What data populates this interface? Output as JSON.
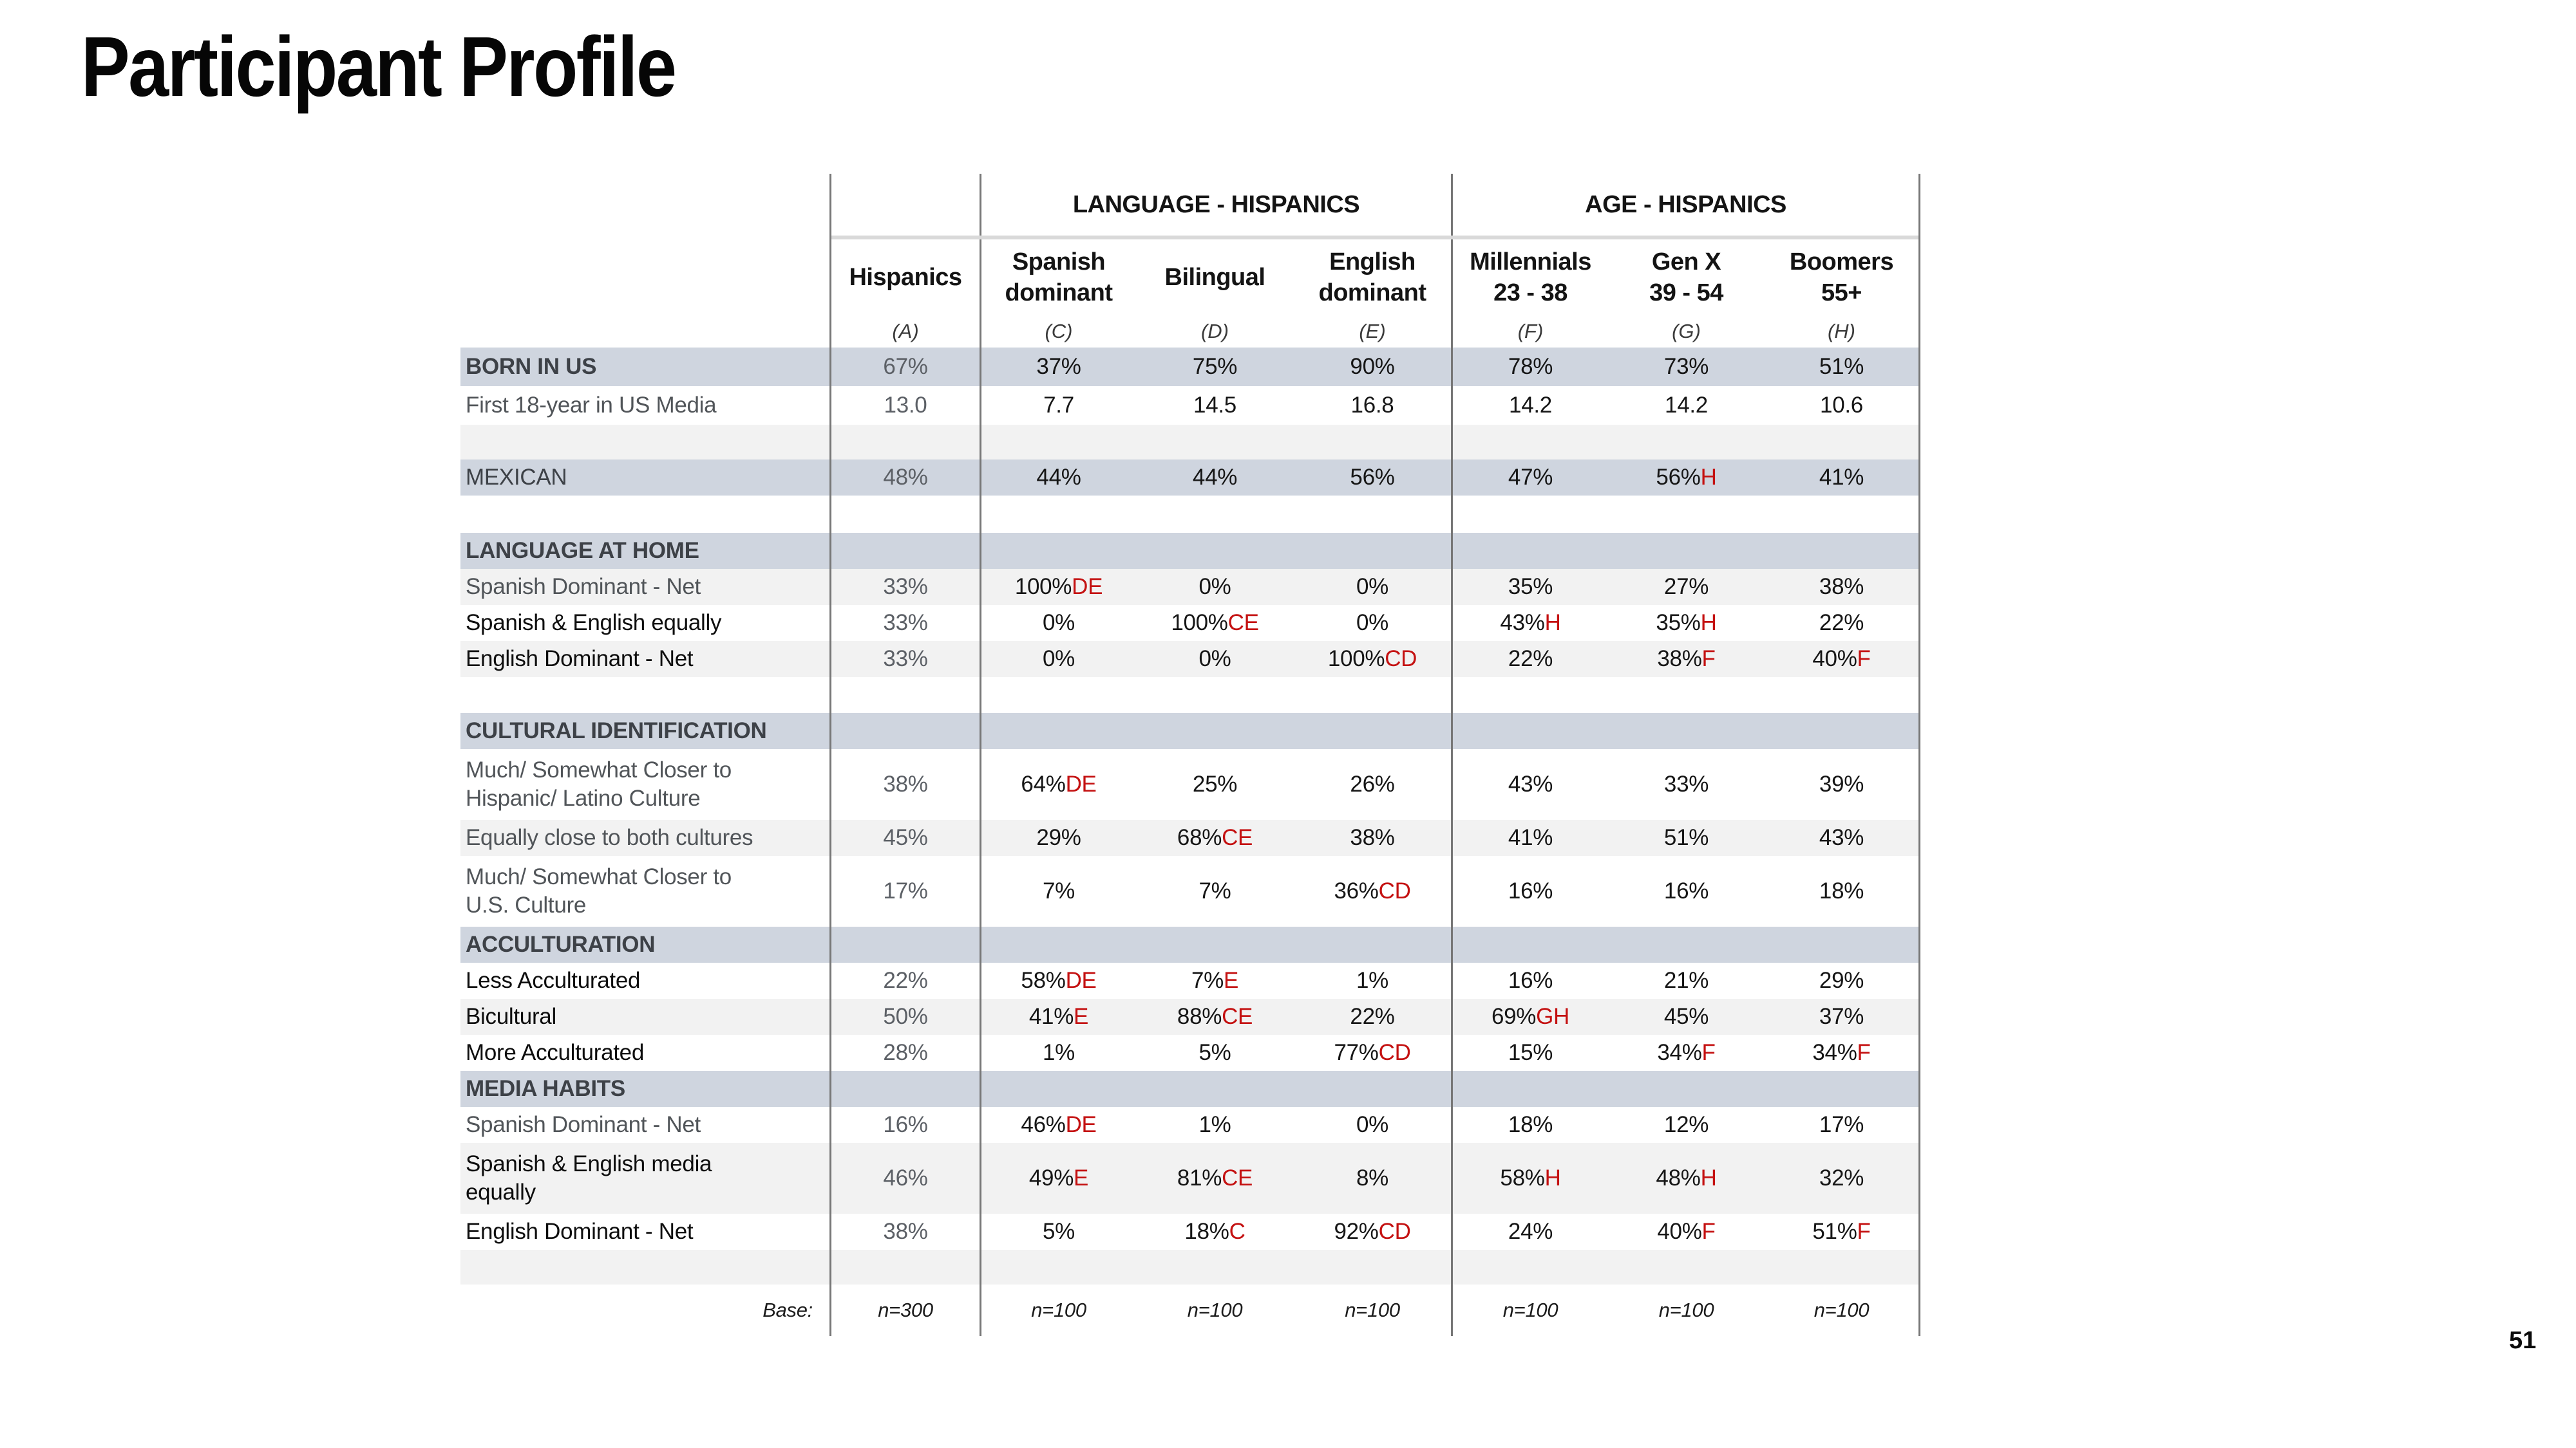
{
  "title": "Participant Profile",
  "page_number": "51",
  "colors": {
    "band": "#cfd5df",
    "stripe": "#f2f2f2",
    "significance_red": "#c41111",
    "border_gray": "#777777",
    "divider_gray": "#d9d9d9",
    "gray_text": "#515559",
    "section_text": "#3d4147"
  },
  "table": {
    "groups": [
      {
        "label": "LANGUAGE - HISPANICS"
      },
      {
        "label": "AGE - HISPANICS"
      }
    ],
    "columns": [
      {
        "label": "Hispanics",
        "letter": "(A)"
      },
      {
        "label": "Spanish\ndominant",
        "letter": "(C)"
      },
      {
        "label": "Bilingual",
        "letter": "(D)"
      },
      {
        "label": "English\ndominant",
        "letter": "(E)"
      },
      {
        "label": "Millennials\n23 - 38",
        "letter": "(F)"
      },
      {
        "label": "Gen X\n39 - 54",
        "letter": "(G)"
      },
      {
        "label": "Boomers\n55+",
        "letter": "(H)"
      }
    ],
    "rows": [
      {
        "type": "data",
        "bg": "band",
        "label": "BORN IN US",
        "label_style": "section",
        "h": 60,
        "cells": [
          "67%",
          "37%",
          "75%",
          "90%",
          "78%",
          "73%",
          "51%"
        ]
      },
      {
        "type": "data",
        "bg": "white",
        "label": "First 18-year in US Media",
        "label_style": "gray",
        "h": 60,
        "cells": [
          "13.0",
          "7.7",
          "14.5",
          "16.8",
          "14.2",
          "14.2",
          "10.6"
        ]
      },
      {
        "type": "spacer",
        "bg": "stripe",
        "h": 54
      },
      {
        "type": "data",
        "bg": "band",
        "label": "MEXICAN",
        "label_style": "upper",
        "h": 56,
        "cells": [
          "48%",
          "44%",
          "44%",
          "56%",
          "47%",
          "56%|H",
          "41%"
        ]
      },
      {
        "type": "spacer",
        "bg": "white",
        "h": 58
      },
      {
        "type": "section",
        "bg": "band",
        "label": "LANGUAGE AT HOME",
        "h": 56
      },
      {
        "type": "data",
        "bg": "stripe",
        "label": "Spanish Dominant - Net",
        "label_style": "gray",
        "h": 56,
        "cells": [
          "33%",
          "100%|DE",
          "0%",
          "0%",
          "35%",
          "27%",
          "38%"
        ]
      },
      {
        "type": "data",
        "bg": "white",
        "label": "Spanish & English equally",
        "label_style": "black",
        "h": 56,
        "cells": [
          "33%",
          "0%",
          "100%|CE",
          "0%",
          "43%|H",
          "35%|H",
          "22%"
        ]
      },
      {
        "type": "data",
        "bg": "stripe",
        "label": "English Dominant - Net",
        "label_style": "black",
        "h": 56,
        "cells": [
          "33%",
          "0%",
          "0%",
          "100%|CD",
          "22%",
          "38%|F",
          "40%|F"
        ]
      },
      {
        "type": "spacer",
        "bg": "white",
        "h": 56
      },
      {
        "type": "section",
        "bg": "band",
        "label": "CULTURAL IDENTIFICATION",
        "h": 56
      },
      {
        "type": "data",
        "bg": "white",
        "label": "Much/ Somewhat Closer to\nHispanic/ Latino Culture",
        "label_style": "gray",
        "h": 110,
        "cells": [
          "38%",
          "64%|DE",
          "25%",
          "26%",
          "43%",
          "33%",
          "39%"
        ]
      },
      {
        "type": "data",
        "bg": "stripe",
        "label": "Equally close to both cultures",
        "label_style": "gray",
        "h": 56,
        "cells": [
          "45%",
          "29%",
          "68%|CE",
          "38%",
          "41%",
          "51%",
          "43%"
        ]
      },
      {
        "type": "data",
        "bg": "white",
        "label": "Much/ Somewhat Closer to\nU.S. Culture",
        "label_style": "gray",
        "h": 110,
        "cells": [
          "17%",
          "7%",
          "7%",
          "36%|CD",
          "16%",
          "16%",
          "18%"
        ]
      },
      {
        "type": "section",
        "bg": "band",
        "label": "ACCULTURATION",
        "h": 56
      },
      {
        "type": "data",
        "bg": "white",
        "label": "Less Acculturated",
        "label_style": "black",
        "h": 56,
        "cells": [
          "22%",
          "58%|DE",
          "7%|E",
          "1%",
          "16%",
          "21%",
          "29%"
        ]
      },
      {
        "type": "data",
        "bg": "stripe",
        "label": "Bicultural",
        "label_style": "black",
        "h": 56,
        "cells": [
          "50%",
          "41%|E",
          "88%|CE",
          "22%",
          "69%|GH",
          "45%",
          "37%"
        ]
      },
      {
        "type": "data",
        "bg": "white",
        "label": "More Acculturated",
        "label_style": "black",
        "h": 56,
        "cells": [
          "28%",
          "1%",
          "5%",
          "77%|CD",
          "15%",
          "34%|F",
          "34%|F"
        ]
      },
      {
        "type": "section",
        "bg": "band",
        "label": "MEDIA HABITS",
        "h": 56
      },
      {
        "type": "data",
        "bg": "white",
        "label": "Spanish Dominant - Net",
        "label_style": "gray",
        "h": 56,
        "cells": [
          "16%",
          "46%|DE",
          "1%",
          "0%",
          "18%",
          "12%",
          "17%"
        ]
      },
      {
        "type": "data",
        "bg": "stripe",
        "label": "Spanish & English media\nequally",
        "label_style": "black",
        "h": 110,
        "cells": [
          "46%",
          "49%|E",
          "81%|CE",
          "8%",
          "58%|H",
          "48%|H",
          "32%"
        ]
      },
      {
        "type": "data",
        "bg": "white",
        "label": "English Dominant - Net",
        "label_style": "black",
        "h": 56,
        "cells": [
          "38%",
          "5%",
          "18%|C",
          "92%|CD",
          "24%",
          "40%|F",
          "51%|F"
        ]
      },
      {
        "type": "spacer",
        "bg": "stripe",
        "h": 54
      },
      {
        "type": "base",
        "bg": "white",
        "label": "Base:",
        "h": 80,
        "cells": [
          "n=300",
          "n=100",
          "n=100",
          "n=100",
          "n=100",
          "n=100",
          "n=100"
        ]
      }
    ]
  }
}
